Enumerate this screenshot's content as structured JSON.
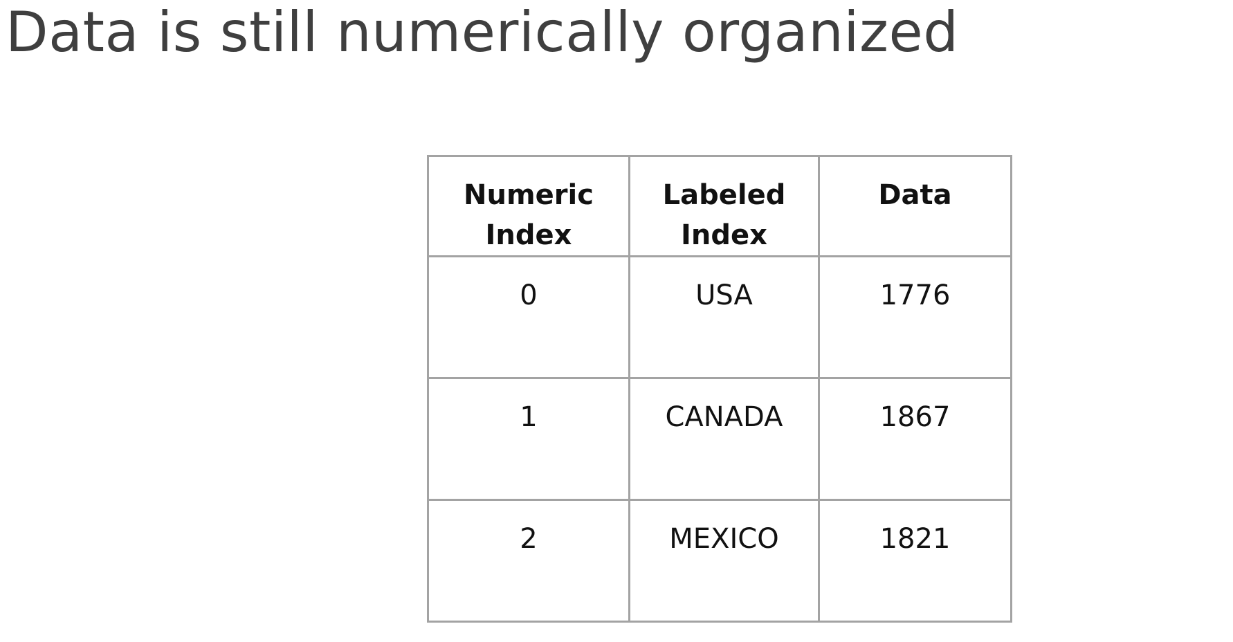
{
  "slide": {
    "title": "Data is still numerically organized"
  },
  "table": {
    "headers": [
      {
        "line1": "Numeric",
        "line2": "Index"
      },
      {
        "line1": "Labeled",
        "line2": "Index"
      },
      {
        "line1": "Data",
        "line2": ""
      }
    ],
    "rows": [
      {
        "numeric_index": "0",
        "labeled_index": "USA",
        "data": "1776"
      },
      {
        "numeric_index": "1",
        "labeled_index": "CANADA",
        "data": "1867"
      },
      {
        "numeric_index": "2",
        "labeled_index": "MEXICO",
        "data": "1821"
      }
    ]
  },
  "colors": {
    "title_text": "#3f3f3f",
    "table_border": "#a3a3a3",
    "table_text": "#111111",
    "background": "#ffffff"
  }
}
